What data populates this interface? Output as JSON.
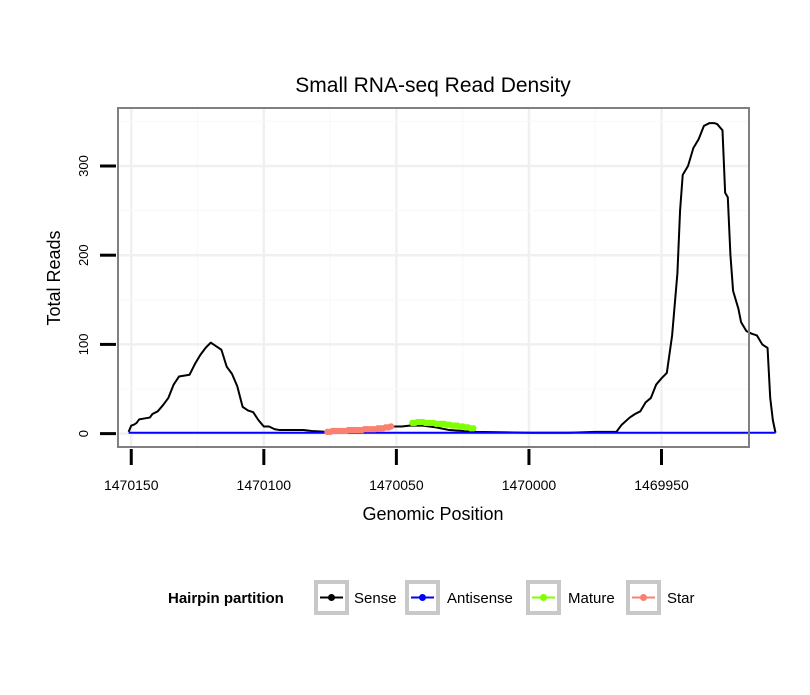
{
  "chart_data": {
    "type": "line",
    "title": "Small RNA-seq Read Density",
    "xlabel": "Genomic Position",
    "ylabel": "Total Reads",
    "xlim": [
      1470155,
      1469917
    ],
    "ylim": [
      -15,
      365
    ],
    "x_reversed": true,
    "xticks": [
      1470150,
      1470100,
      1470050,
      1470000,
      1469950
    ],
    "xtick_labels": [
      "1470150",
      "1470100",
      "1470050",
      "1470000",
      "1469950"
    ],
    "yticks": [
      0,
      100,
      200,
      300
    ],
    "ytick_labels": [
      "0",
      "100",
      "200",
      "300"
    ],
    "grid": true,
    "legend": {
      "title": "Hairpin partition",
      "position": "bottom",
      "entries": [
        {
          "label": "Sense",
          "color": "#000000"
        },
        {
          "label": "Antisense",
          "color": "#0000ff"
        },
        {
          "label": "Mature",
          "color": "#7fff00"
        },
        {
          "label": "Star",
          "color": "#fa8072"
        }
      ]
    },
    "series": [
      {
        "name": "Sense",
        "color": "#000000",
        "markers": false,
        "points": [
          [
            1470151,
            2
          ],
          [
            1470150,
            9
          ],
          [
            1470149,
            10
          ],
          [
            1470148,
            12
          ],
          [
            1470147,
            16
          ],
          [
            1470145,
            17
          ],
          [
            1470143,
            18
          ],
          [
            1470142,
            22
          ],
          [
            1470140,
            25
          ],
          [
            1470138,
            32
          ],
          [
            1470136,
            40
          ],
          [
            1470134,
            55
          ],
          [
            1470132,
            64
          ],
          [
            1470130,
            65
          ],
          [
            1470128,
            66
          ],
          [
            1470126,
            78
          ],
          [
            1470124,
            88
          ],
          [
            1470122,
            96
          ],
          [
            1470120,
            102
          ],
          [
            1470118,
            98
          ],
          [
            1470116,
            94
          ],
          [
            1470114,
            75
          ],
          [
            1470112,
            67
          ],
          [
            1470110,
            53
          ],
          [
            1470108,
            30
          ],
          [
            1470106,
            26
          ],
          [
            1470104,
            24
          ],
          [
            1470102,
            15
          ],
          [
            1470100,
            8
          ],
          [
            1470098,
            8
          ],
          [
            1470096,
            5
          ],
          [
            1470094,
            4
          ],
          [
            1470085,
            4
          ],
          [
            1470082,
            3
          ],
          [
            1470076,
            2
          ],
          [
            1470072,
            3
          ],
          [
            1470066,
            5
          ],
          [
            1470062,
            6
          ],
          [
            1470056,
            7
          ],
          [
            1470052,
            8
          ],
          [
            1470048,
            8
          ],
          [
            1470045,
            9
          ],
          [
            1470040,
            9
          ],
          [
            1470035,
            7
          ],
          [
            1470030,
            4
          ],
          [
            1470020,
            2
          ],
          [
            1470000,
            1
          ],
          [
            1469985,
            1
          ],
          [
            1469975,
            2
          ],
          [
            1469967,
            2
          ],
          [
            1469965,
            10
          ],
          [
            1469962,
            18
          ],
          [
            1469960,
            22
          ],
          [
            1469958,
            25
          ],
          [
            1469957,
            30
          ],
          [
            1469956,
            35
          ],
          [
            1469954,
            40
          ],
          [
            1469952,
            55
          ],
          [
            1469950,
            62
          ],
          [
            1469948,
            68
          ],
          [
            1469946,
            110
          ],
          [
            1469944,
            180
          ],
          [
            1469943,
            250
          ],
          [
            1469942,
            290
          ],
          [
            1469940,
            300
          ],
          [
            1469938,
            320
          ],
          [
            1469936,
            330
          ],
          [
            1469934,
            345
          ],
          [
            1469932,
            348
          ],
          [
            1469930,
            348
          ],
          [
            1469929,
            347
          ],
          [
            1469927,
            340
          ],
          [
            1469926,
            270
          ],
          [
            1469925,
            265
          ],
          [
            1469924,
            200
          ],
          [
            1469923,
            160
          ],
          [
            1469921,
            140
          ],
          [
            1469920,
            125
          ],
          [
            1469918,
            115
          ],
          [
            1469916,
            112
          ],
          [
            1469914,
            110
          ],
          [
            1469912,
            100
          ],
          [
            1469910,
            96
          ],
          [
            1469909,
            40
          ],
          [
            1469908,
            15
          ],
          [
            1469907,
            1
          ]
        ]
      },
      {
        "name": "Antisense",
        "color": "#0000ff",
        "markers": false,
        "points": [
          [
            1470151,
            1
          ],
          [
            1469907,
            1
          ]
        ]
      },
      {
        "name": "Mature",
        "color": "#7fff00",
        "markers": true,
        "points": [
          [
            1470044,
            12
          ],
          [
            1470043,
            12
          ],
          [
            1470042,
            13
          ],
          [
            1470041,
            13
          ],
          [
            1470040,
            13
          ],
          [
            1470039,
            12
          ],
          [
            1470038,
            12
          ],
          [
            1470037,
            12
          ],
          [
            1470036,
            12
          ],
          [
            1470035,
            11
          ],
          [
            1470034,
            11
          ],
          [
            1470033,
            11
          ],
          [
            1470032,
            11
          ],
          [
            1470031,
            10
          ],
          [
            1470030,
            10
          ],
          [
            1470029,
            9
          ],
          [
            1470028,
            9
          ],
          [
            1470027,
            9
          ],
          [
            1470026,
            8
          ],
          [
            1470025,
            8
          ],
          [
            1470024,
            7
          ],
          [
            1470023,
            7
          ],
          [
            1470022,
            6
          ],
          [
            1470021,
            6
          ]
        ]
      },
      {
        "name": "Star",
        "color": "#fa8072",
        "markers": true,
        "points": [
          [
            1470076,
            2
          ],
          [
            1470075,
            2
          ],
          [
            1470074,
            3
          ],
          [
            1470073,
            3
          ],
          [
            1470072,
            3
          ],
          [
            1470071,
            3
          ],
          [
            1470070,
            3
          ],
          [
            1470069,
            3
          ],
          [
            1470068,
            4
          ],
          [
            1470067,
            4
          ],
          [
            1470066,
            4
          ],
          [
            1470065,
            4
          ],
          [
            1470064,
            4
          ],
          [
            1470063,
            4
          ],
          [
            1470062,
            5
          ],
          [
            1470061,
            5
          ],
          [
            1470060,
            5
          ],
          [
            1470059,
            5
          ],
          [
            1470058,
            5
          ],
          [
            1470057,
            6
          ],
          [
            1470056,
            6
          ],
          [
            1470055,
            6
          ],
          [
            1470054,
            7
          ],
          [
            1470053,
            7
          ],
          [
            1470052,
            8
          ]
        ]
      }
    ]
  }
}
